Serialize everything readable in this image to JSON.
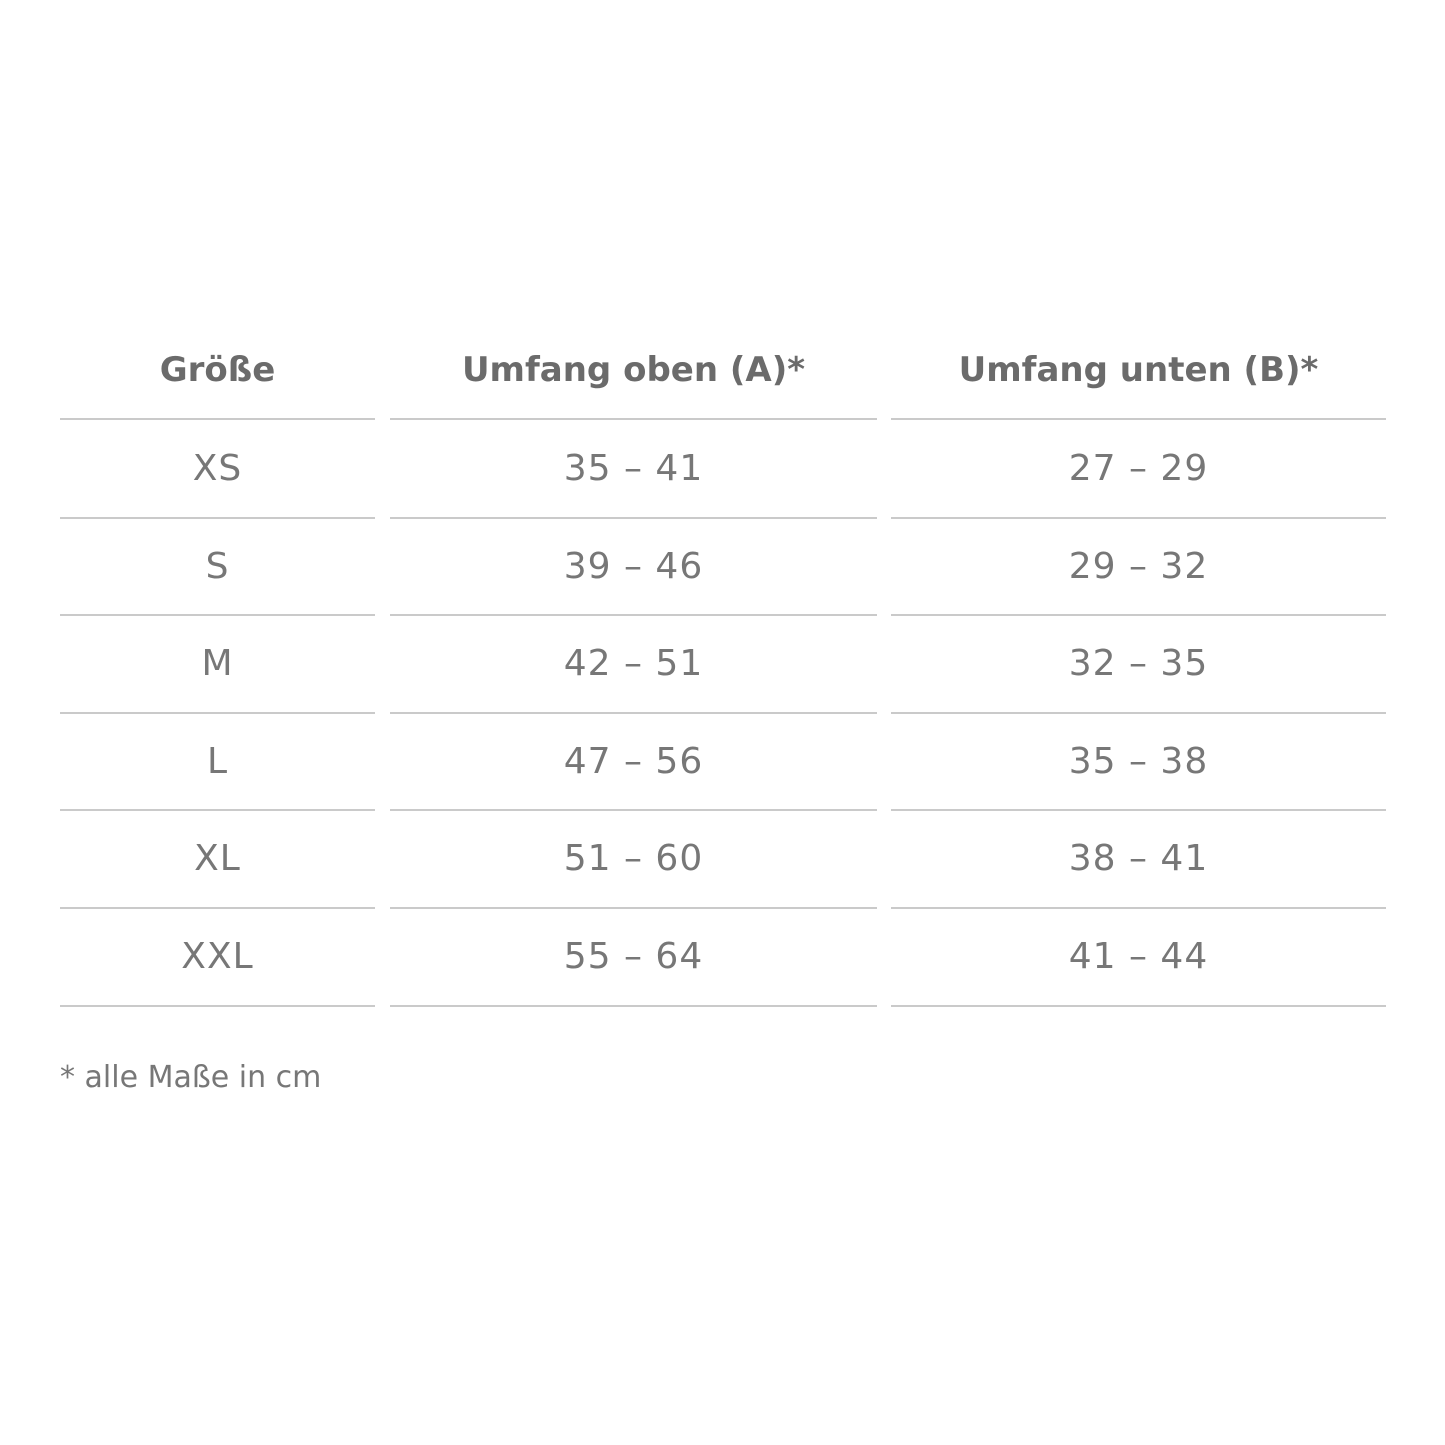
{
  "table": {
    "headers": [
      "Größe",
      "Umfang oben (A)*",
      "Umfang unten (B)*"
    ],
    "rows": [
      [
        "XS",
        "35 – 41",
        "27 – 29"
      ],
      [
        "S",
        "39 – 46",
        "29 – 32"
      ],
      [
        "M",
        "42 – 51",
        "32 – 35"
      ],
      [
        "L",
        "47 – 56",
        "35 – 38"
      ],
      [
        "XL",
        "51 – 60",
        "38 – 41"
      ],
      [
        "XXL",
        "55 – 64",
        "41 – 44"
      ]
    ]
  },
  "footnote": "* alle Maße in cm"
}
